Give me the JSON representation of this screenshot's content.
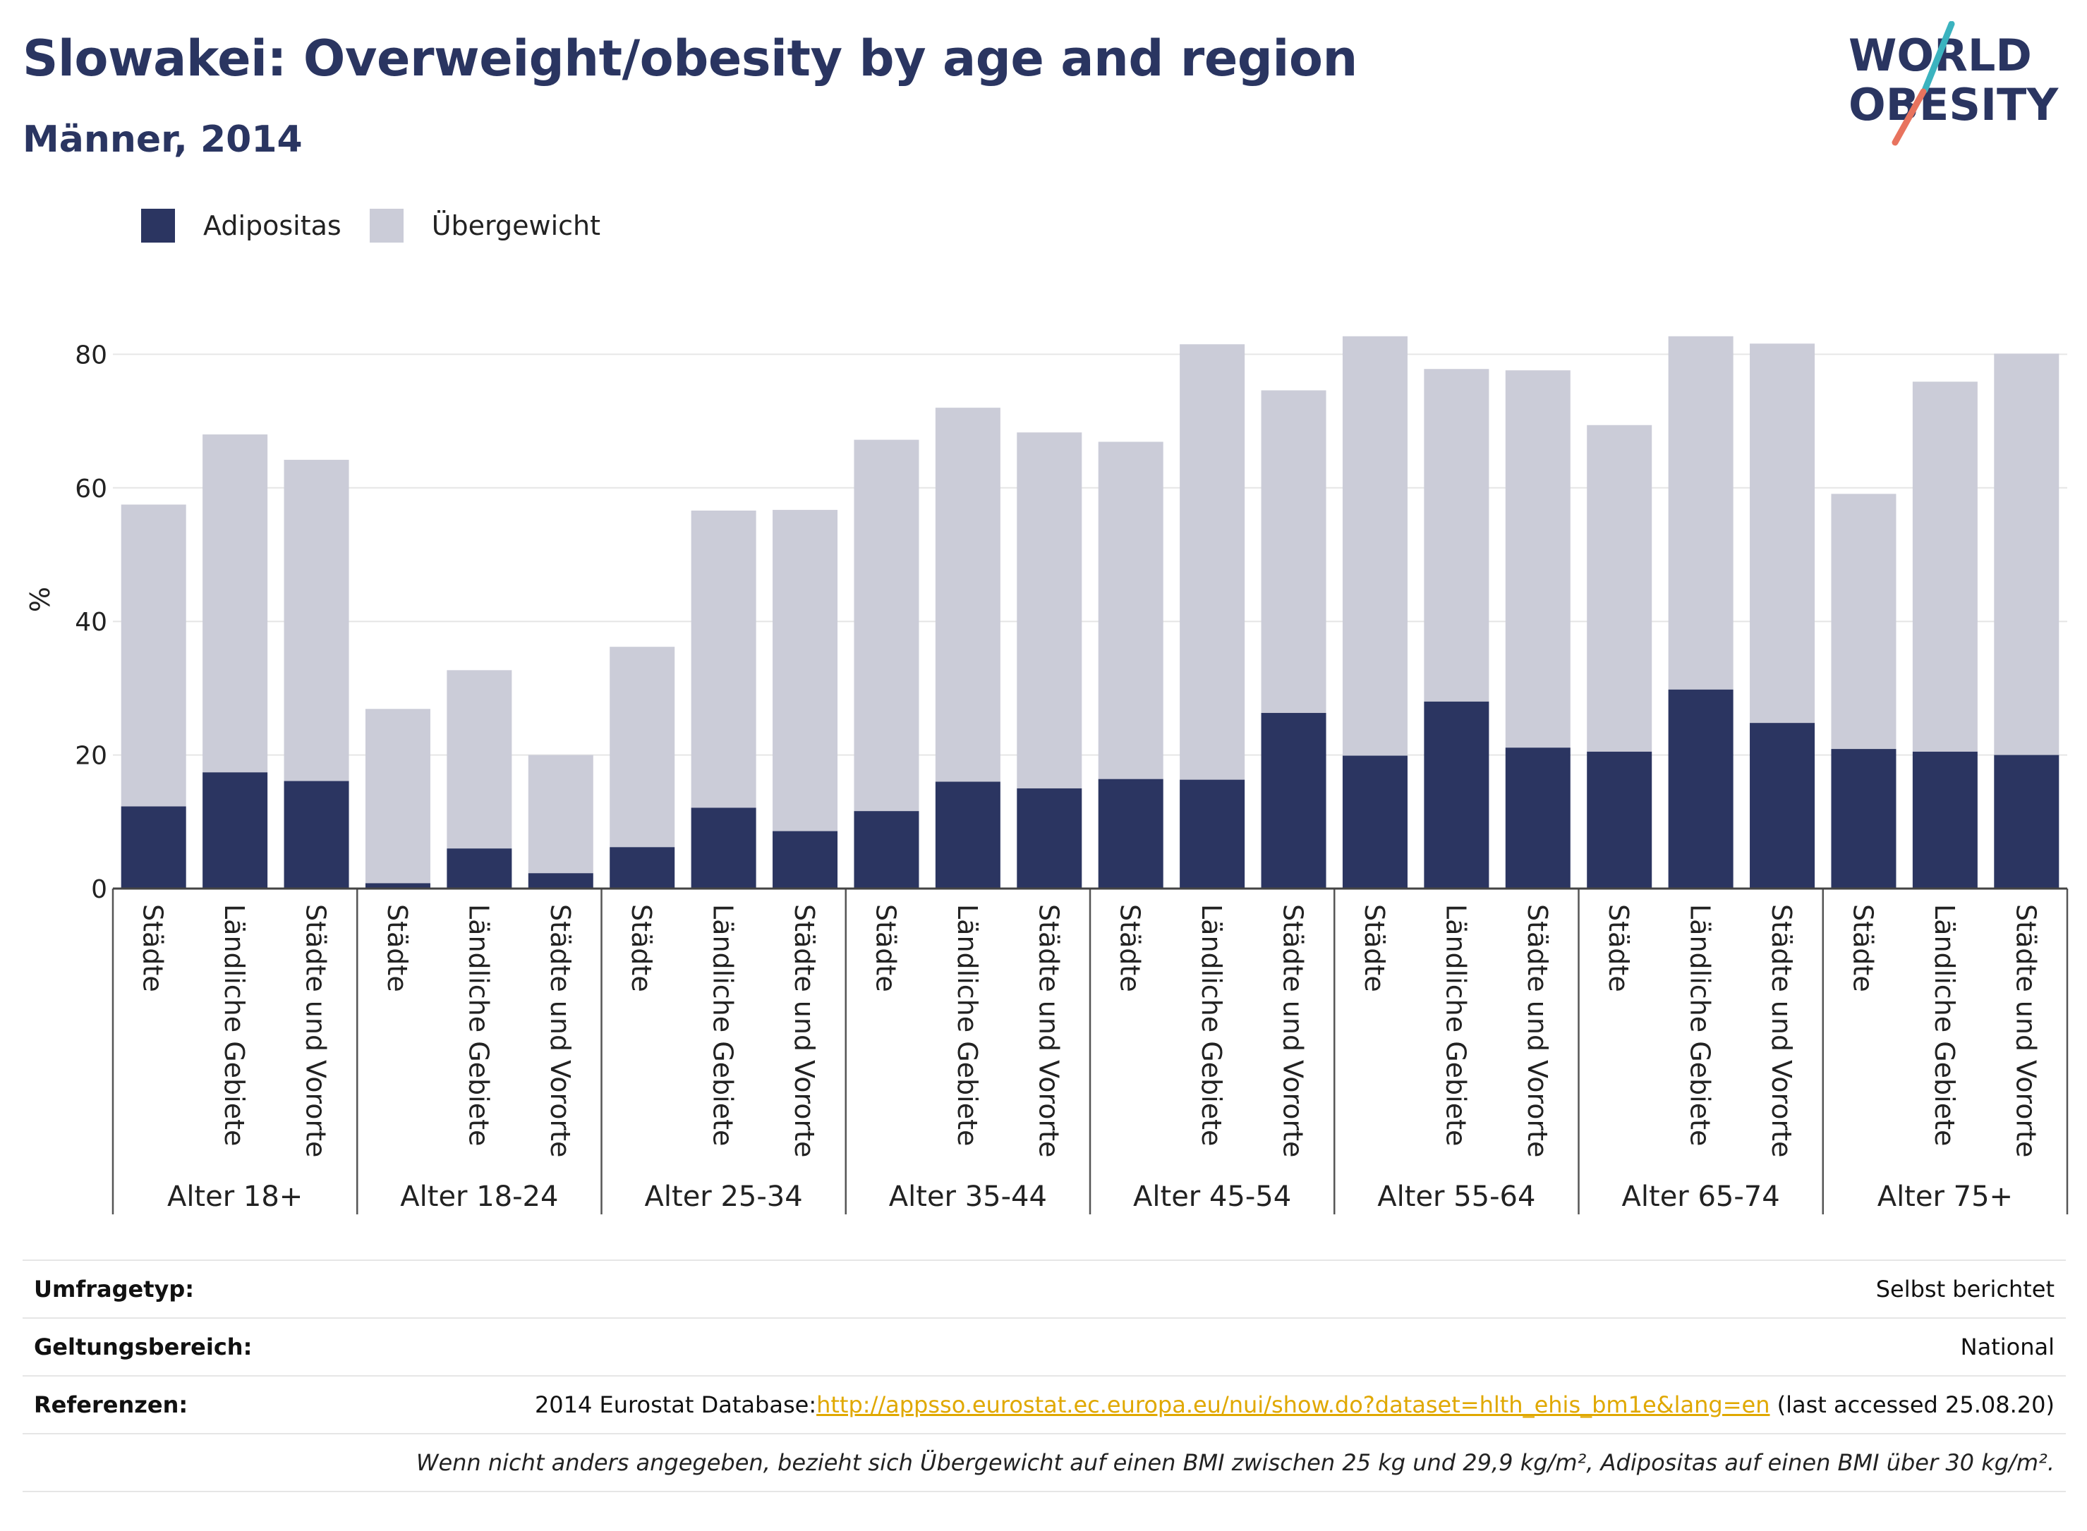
{
  "header": {
    "title": "Slowakei: Overweight/obesity by age and region",
    "subtitle": "Männer, 2014",
    "logo_line1": "WORLD",
    "logo_line2": "OBESITY"
  },
  "colors": {
    "obesity": "#2b3561",
    "overweight": "#cbccd8",
    "title": "#2a3561",
    "logo_teal": "#3bb3bf",
    "logo_coral": "#e8735e",
    "link": "#e0a800"
  },
  "legend": {
    "obesity_label": "Adipositas",
    "overweight_label": "Übergewicht"
  },
  "chart_data": {
    "type": "bar",
    "stacked": true,
    "ylabel": "%",
    "ylim": [
      0,
      85
    ],
    "yticks": [
      0,
      20,
      40,
      60,
      80
    ],
    "groups": [
      {
        "label": "Alter 18+",
        "categories": [
          "Städte",
          "Ländliche Gebiete",
          "Städte und Vororte"
        ],
        "obesity": [
          12.3,
          17.4,
          16.1
        ],
        "total": [
          57.5,
          68.0,
          64.2
        ]
      },
      {
        "label": "Alter 18-24",
        "categories": [
          "Städte",
          "Ländliche Gebiete",
          "Städte und Vororte"
        ],
        "obesity": [
          0.8,
          6.0,
          2.3
        ],
        "total": [
          26.9,
          32.7,
          20.0
        ]
      },
      {
        "label": "Alter 25-34",
        "categories": [
          "Städte",
          "Ländliche Gebiete",
          "Städte und Vororte"
        ],
        "obesity": [
          6.2,
          12.1,
          8.6
        ],
        "total": [
          36.2,
          56.6,
          56.7
        ]
      },
      {
        "label": "Alter 35-44",
        "categories": [
          "Städte",
          "Ländliche Gebiete",
          "Städte und Vororte"
        ],
        "obesity": [
          11.6,
          16.0,
          15.0
        ],
        "total": [
          67.2,
          72.0,
          68.3
        ]
      },
      {
        "label": "Alter 45-54",
        "categories": [
          "Städte",
          "Ländliche Gebiete",
          "Städte und Vororte"
        ],
        "obesity": [
          16.4,
          16.3,
          26.3
        ],
        "total": [
          66.9,
          81.5,
          74.6
        ]
      },
      {
        "label": "Alter 55-64",
        "categories": [
          "Städte",
          "Ländliche Gebiete",
          "Städte und Vororte"
        ],
        "obesity": [
          19.9,
          28.0,
          21.1
        ],
        "total": [
          82.7,
          77.8,
          77.6
        ]
      },
      {
        "label": "Alter 65-74",
        "categories": [
          "Städte",
          "Ländliche Gebiete",
          "Städte und Vororte"
        ],
        "obesity": [
          20.5,
          29.8,
          24.8
        ],
        "total": [
          69.4,
          82.7,
          81.6
        ]
      },
      {
        "label": "Alter 75+",
        "categories": [
          "Städte",
          "Ländliche Gebiete",
          "Städte und Vororte"
        ],
        "obesity": [
          20.9,
          20.5,
          20.0
        ],
        "total": [
          59.1,
          75.9,
          80.1
        ]
      }
    ]
  },
  "info": {
    "survey_label": "Umfragetyp:",
    "survey_value": "Selbst berichtet",
    "scope_label": "Geltungsbereich:",
    "scope_value": "National",
    "ref_label": "Referenzen:",
    "ref_prefix": "2014 Eurostat Database:",
    "ref_link": "http://appsso.eurostat.ec.europa.eu/nui/show.do?dataset=hlth_ehis_bm1e&lang=en",
    "ref_suffix": " (last accessed 25.08.20)",
    "note": "Wenn nicht anders angegeben, bezieht sich Übergewicht auf einen BMI zwischen 25 kg und 29,9 kg/m², Adipositas auf einen BMI über 30 kg/m²."
  }
}
